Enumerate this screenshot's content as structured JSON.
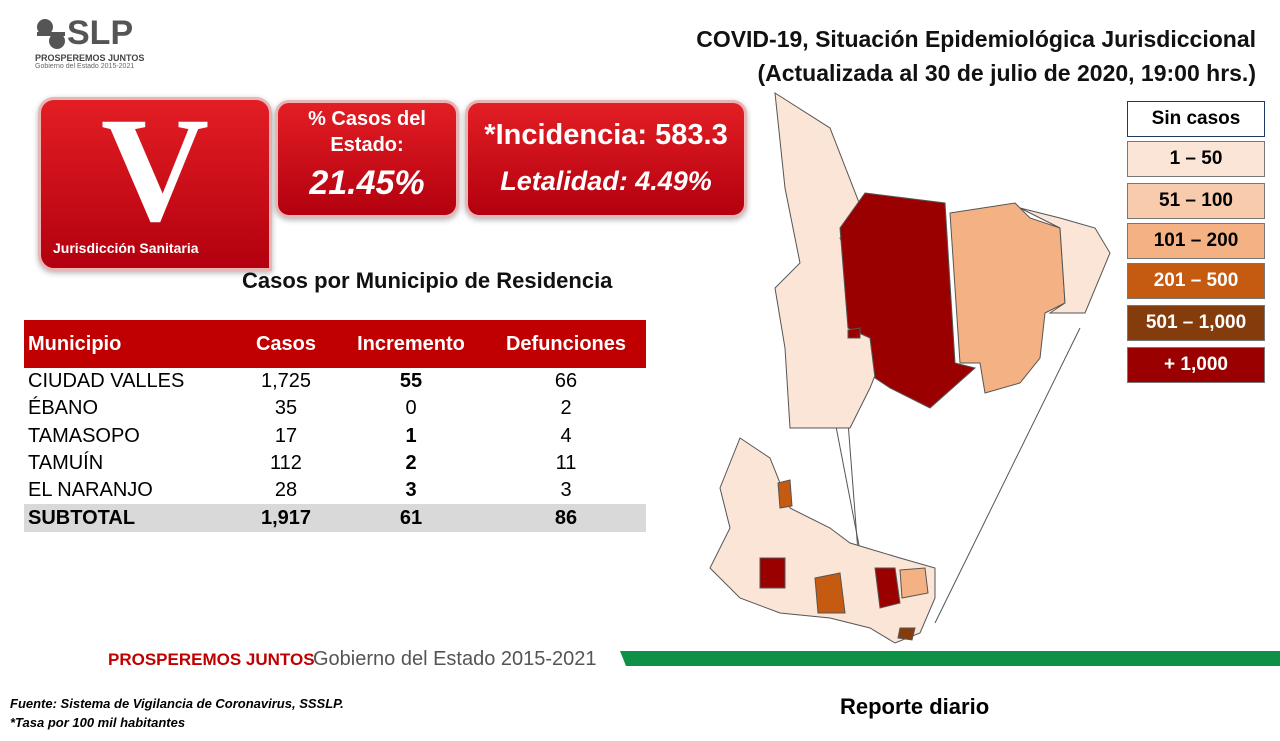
{
  "logo": {
    "name": "SLP",
    "tagline": "PROSPEREMOS JUNTOS",
    "subtitle": "Gobierno del Estado 2015-2021"
  },
  "title": [
    "COVID-19, Situación Epidemiológica Jurisdiccional",
    "(Actualizada al 30 de julio de 2020, 19:00 hrs.)"
  ],
  "jurisdiction": {
    "letter": "V",
    "label": "Jurisdicción Sanitaria"
  },
  "state_share": {
    "label": [
      "% Casos del",
      "Estado:"
    ],
    "value": "21.45%"
  },
  "rates": {
    "incidence": "*Incidencia: 583.3",
    "lethality": "Letalidad: 4.49%"
  },
  "table": {
    "title": "Casos por Municipio  de Residencia",
    "headers": [
      "Municipio",
      "Casos",
      "Incremento",
      "Defunciones"
    ],
    "rows": [
      [
        "CIUDAD VALLES",
        "1,725",
        "55",
        "66"
      ],
      [
        "ÉBANO",
        "35",
        "0",
        "2"
      ],
      [
        "TAMASOPO",
        "17",
        "1",
        "4"
      ],
      [
        "TAMUÍN",
        "112",
        "2",
        "11"
      ],
      [
        "EL NARANJO",
        "28",
        "3",
        "3"
      ]
    ],
    "total": [
      "SUBTOTAL",
      "1,917",
      "61",
      "86"
    ]
  },
  "legend": [
    "Sin casos",
    "1 – 50",
    "51 – 100",
    "101 – 200",
    "201 – 500",
    "501 – 1,000",
    "+ 1,000"
  ],
  "footer": {
    "brand": "PROSPEREMOS JUNTOS",
    "government": "Gobierno del Estado 2015-2021",
    "source": "Fuente: Sistema de Vigilancia de Coronavirus, SSSLP.",
    "note": "*Tasa por 100 mil habitantes",
    "report": "Reporte diario"
  }
}
